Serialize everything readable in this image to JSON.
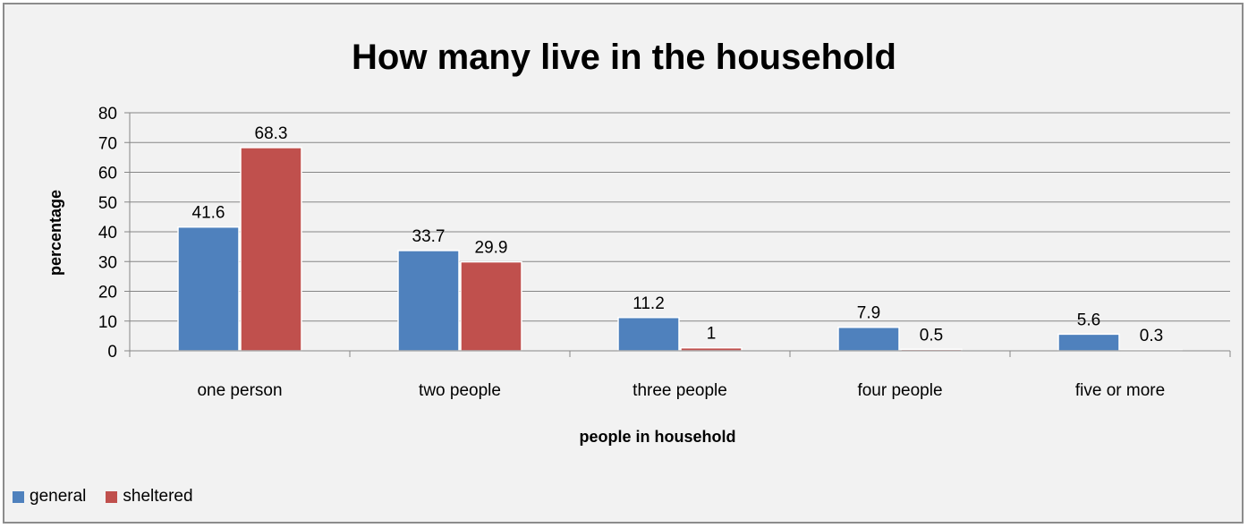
{
  "chart_data": {
    "type": "bar",
    "title": "How many live in the household",
    "xlabel": "people in household",
    "ylabel": "percentage",
    "categories": [
      "one person",
      "two people",
      "three people",
      "four people",
      "five or more"
    ],
    "series": [
      {
        "name": "general",
        "values": [
          41.6,
          33.7,
          11.2,
          7.9,
          5.6
        ],
        "labels": [
          "41.6",
          "33.7",
          "11.2",
          "7.9",
          "5.6"
        ],
        "color": "#4f81bd"
      },
      {
        "name": "sheltered",
        "values": [
          68.3,
          29.9,
          1,
          0.5,
          0.3
        ],
        "labels": [
          "68.3",
          "29.9",
          "1",
          "0.5",
          "0.3"
        ],
        "color": "#c0504d"
      }
    ],
    "ylim": [
      0,
      80
    ],
    "yticks": [
      "0",
      "10",
      "20",
      "30",
      "40",
      "50",
      "60",
      "70",
      "80"
    ],
    "grid": true,
    "legend_position": "bottom-left"
  }
}
